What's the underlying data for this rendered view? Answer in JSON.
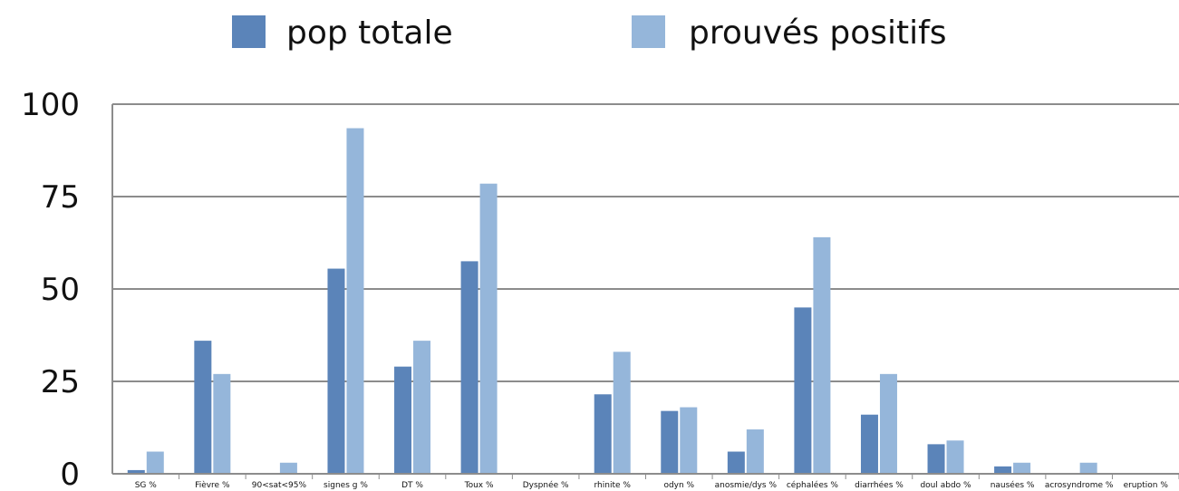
{
  "chart_data": {
    "type": "bar",
    "categories": [
      "SG %",
      "Fièvre %",
      "90<sat<95%",
      "signes g %",
      "DT %",
      "Toux %",
      "Dyspnée %",
      "rhinite %",
      "odyn %",
      "anosmie/dys %",
      "céphalées %",
      "diarrhées %",
      "doul abdo %",
      "nausées %",
      "acrosyndrome %",
      "eruption %"
    ],
    "series": [
      {
        "name": "pop totale",
        "color": "#5b84b9",
        "values": [
          1,
          36,
          0,
          55.5,
          29,
          57.5,
          0,
          21.5,
          17,
          6,
          45,
          16,
          8,
          2,
          0,
          0
        ]
      },
      {
        "name": "prouvés positifs",
        "color": "#95b6da",
        "values": [
          6,
          27,
          3,
          93.5,
          36,
          78.5,
          0,
          33,
          18,
          12,
          64,
          27,
          9,
          3,
          3,
          0
        ]
      }
    ],
    "ylim": [
      0,
      100
    ],
    "yticks": [
      "0",
      "25",
      "50",
      "75",
      "100"
    ],
    "grid": true,
    "legend_position": "top"
  }
}
